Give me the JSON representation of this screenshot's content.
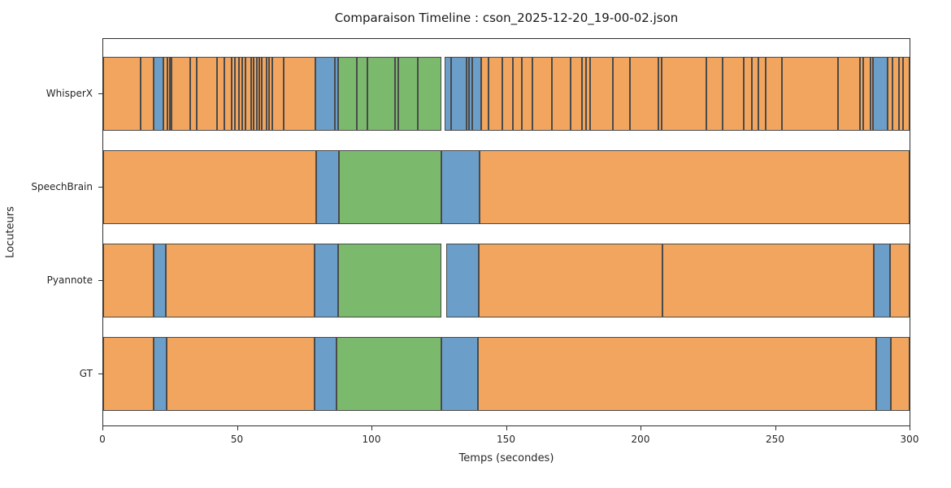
{
  "chart_data": {
    "type": "timeline",
    "title": "Comparaison Timeline : cson_2025-12-20_19-00-02.json",
    "xlabel": "Temps (secondes)",
    "ylabel": "Locuteurs",
    "xlim": [
      0,
      300
    ],
    "xticks": [
      0,
      50,
      100,
      150,
      200,
      250,
      300
    ],
    "legend": "none",
    "grid": false,
    "colors": {
      "orange": "#F2A55E",
      "blue": "#6B9EC8",
      "green": "#7BBA6D",
      "edge": "#4A4A4A"
    },
    "rows": [
      {
        "label": "WhisperX",
        "segments": [
          [
            0,
            13.8,
            "orange"
          ],
          [
            13.8,
            18.9,
            "orange"
          ],
          [
            18.9,
            22.5,
            "blue"
          ],
          [
            22.5,
            23.9,
            "orange"
          ],
          [
            23.9,
            24.7,
            "orange"
          ],
          [
            24.7,
            25.4,
            "orange"
          ],
          [
            25.4,
            32.4,
            "orange"
          ],
          [
            32.4,
            34.8,
            "orange"
          ],
          [
            34.8,
            42.3,
            "orange"
          ],
          [
            42.3,
            45,
            "orange"
          ],
          [
            45,
            47.8,
            "orange"
          ],
          [
            47.8,
            49.1,
            "orange"
          ],
          [
            49.1,
            50.6,
            "orange"
          ],
          [
            50.6,
            51.8,
            "orange"
          ],
          [
            51.8,
            52.8,
            "orange"
          ],
          [
            52.8,
            54.9,
            "orange"
          ],
          [
            54.9,
            55.9,
            "orange"
          ],
          [
            55.9,
            57.1,
            "orange"
          ],
          [
            57.1,
            58.1,
            "orange"
          ],
          [
            58.1,
            59.1,
            "orange"
          ],
          [
            59.1,
            60.9,
            "orange"
          ],
          [
            60.9,
            61.8,
            "orange"
          ],
          [
            61.8,
            63,
            "orange"
          ],
          [
            63,
            67.2,
            "orange"
          ],
          [
            67.2,
            78.8,
            "orange"
          ],
          [
            78.8,
            86.1,
            "blue"
          ],
          [
            86.1,
            87.3,
            "blue"
          ],
          [
            87.3,
            94.4,
            "green"
          ],
          [
            94.4,
            98.2,
            "green"
          ],
          [
            98.2,
            108.5,
            "green"
          ],
          [
            108.5,
            109.8,
            "green"
          ],
          [
            109.8,
            117,
            "green"
          ],
          [
            117,
            125.8,
            "green"
          ],
          [
            126.9,
            129.4,
            "blue"
          ],
          [
            129.4,
            135.2,
            "blue"
          ],
          [
            135.2,
            136.2,
            "blue"
          ],
          [
            136.2,
            137.4,
            "blue"
          ],
          [
            137.4,
            140.7,
            "blue"
          ],
          [
            140.7,
            143.2,
            "orange"
          ],
          [
            143.2,
            148.6,
            "orange"
          ],
          [
            148.6,
            152.3,
            "orange"
          ],
          [
            152.3,
            155.8,
            "orange"
          ],
          [
            155.8,
            159.6,
            "orange"
          ],
          [
            159.6,
            166.9,
            "orange"
          ],
          [
            166.9,
            174,
            "orange"
          ],
          [
            174,
            178.2,
            "orange"
          ],
          [
            178.2,
            179.5,
            "orange"
          ],
          [
            179.5,
            181.2,
            "orange"
          ],
          [
            181.2,
            189.5,
            "orange"
          ],
          [
            189.5,
            195.9,
            "orange"
          ],
          [
            195.9,
            206.7,
            "orange"
          ],
          [
            206.7,
            207.7,
            "orange"
          ],
          [
            207.7,
            224.5,
            "orange"
          ],
          [
            224.5,
            230.5,
            "orange"
          ],
          [
            230.5,
            238.2,
            "orange"
          ],
          [
            238.2,
            241.4,
            "orange"
          ],
          [
            241.4,
            243.9,
            "orange"
          ],
          [
            243.9,
            246.4,
            "orange"
          ],
          [
            246.4,
            252.5,
            "orange"
          ],
          [
            252.5,
            273.4,
            "orange"
          ],
          [
            273.4,
            281.7,
            "orange"
          ],
          [
            281.7,
            282.9,
            "orange"
          ],
          [
            282.9,
            285.5,
            "orange"
          ],
          [
            285.5,
            286.5,
            "orange"
          ],
          [
            286.5,
            291.7,
            "blue"
          ],
          [
            291.7,
            293.6,
            "orange"
          ],
          [
            293.6,
            296,
            "orange"
          ],
          [
            296,
            297.6,
            "orange"
          ],
          [
            297.6,
            300,
            "orange"
          ]
        ]
      },
      {
        "label": "SpeechBrain",
        "segments": [
          [
            0,
            79.2,
            "orange"
          ],
          [
            79.2,
            87.7,
            "blue"
          ],
          [
            87.7,
            125.8,
            "green"
          ],
          [
            125.8,
            139.9,
            "blue"
          ],
          [
            139.9,
            300,
            "orange"
          ]
        ]
      },
      {
        "label": "Pyannote",
        "segments": [
          [
            0,
            18.6,
            "orange"
          ],
          [
            18.6,
            23.4,
            "blue"
          ],
          [
            23.4,
            78.6,
            "orange"
          ],
          [
            78.6,
            87.3,
            "blue"
          ],
          [
            87.3,
            125.8,
            "green"
          ],
          [
            127.6,
            139.7,
            "blue"
          ],
          [
            139.7,
            208.1,
            "orange"
          ],
          [
            208.1,
            286.6,
            "orange"
          ],
          [
            286.6,
            292.7,
            "blue"
          ],
          [
            292.7,
            300,
            "orange"
          ]
        ]
      },
      {
        "label": "GT",
        "segments": [
          [
            0,
            18.9,
            "orange"
          ],
          [
            18.9,
            23.6,
            "blue"
          ],
          [
            23.6,
            78.6,
            "orange"
          ],
          [
            78.6,
            86.7,
            "blue"
          ],
          [
            86.7,
            125.8,
            "green"
          ],
          [
            125.8,
            139.3,
            "blue"
          ],
          [
            139.3,
            287.5,
            "orange"
          ],
          [
            287.5,
            293.1,
            "blue"
          ],
          [
            293.1,
            300,
            "orange"
          ]
        ]
      }
    ]
  }
}
